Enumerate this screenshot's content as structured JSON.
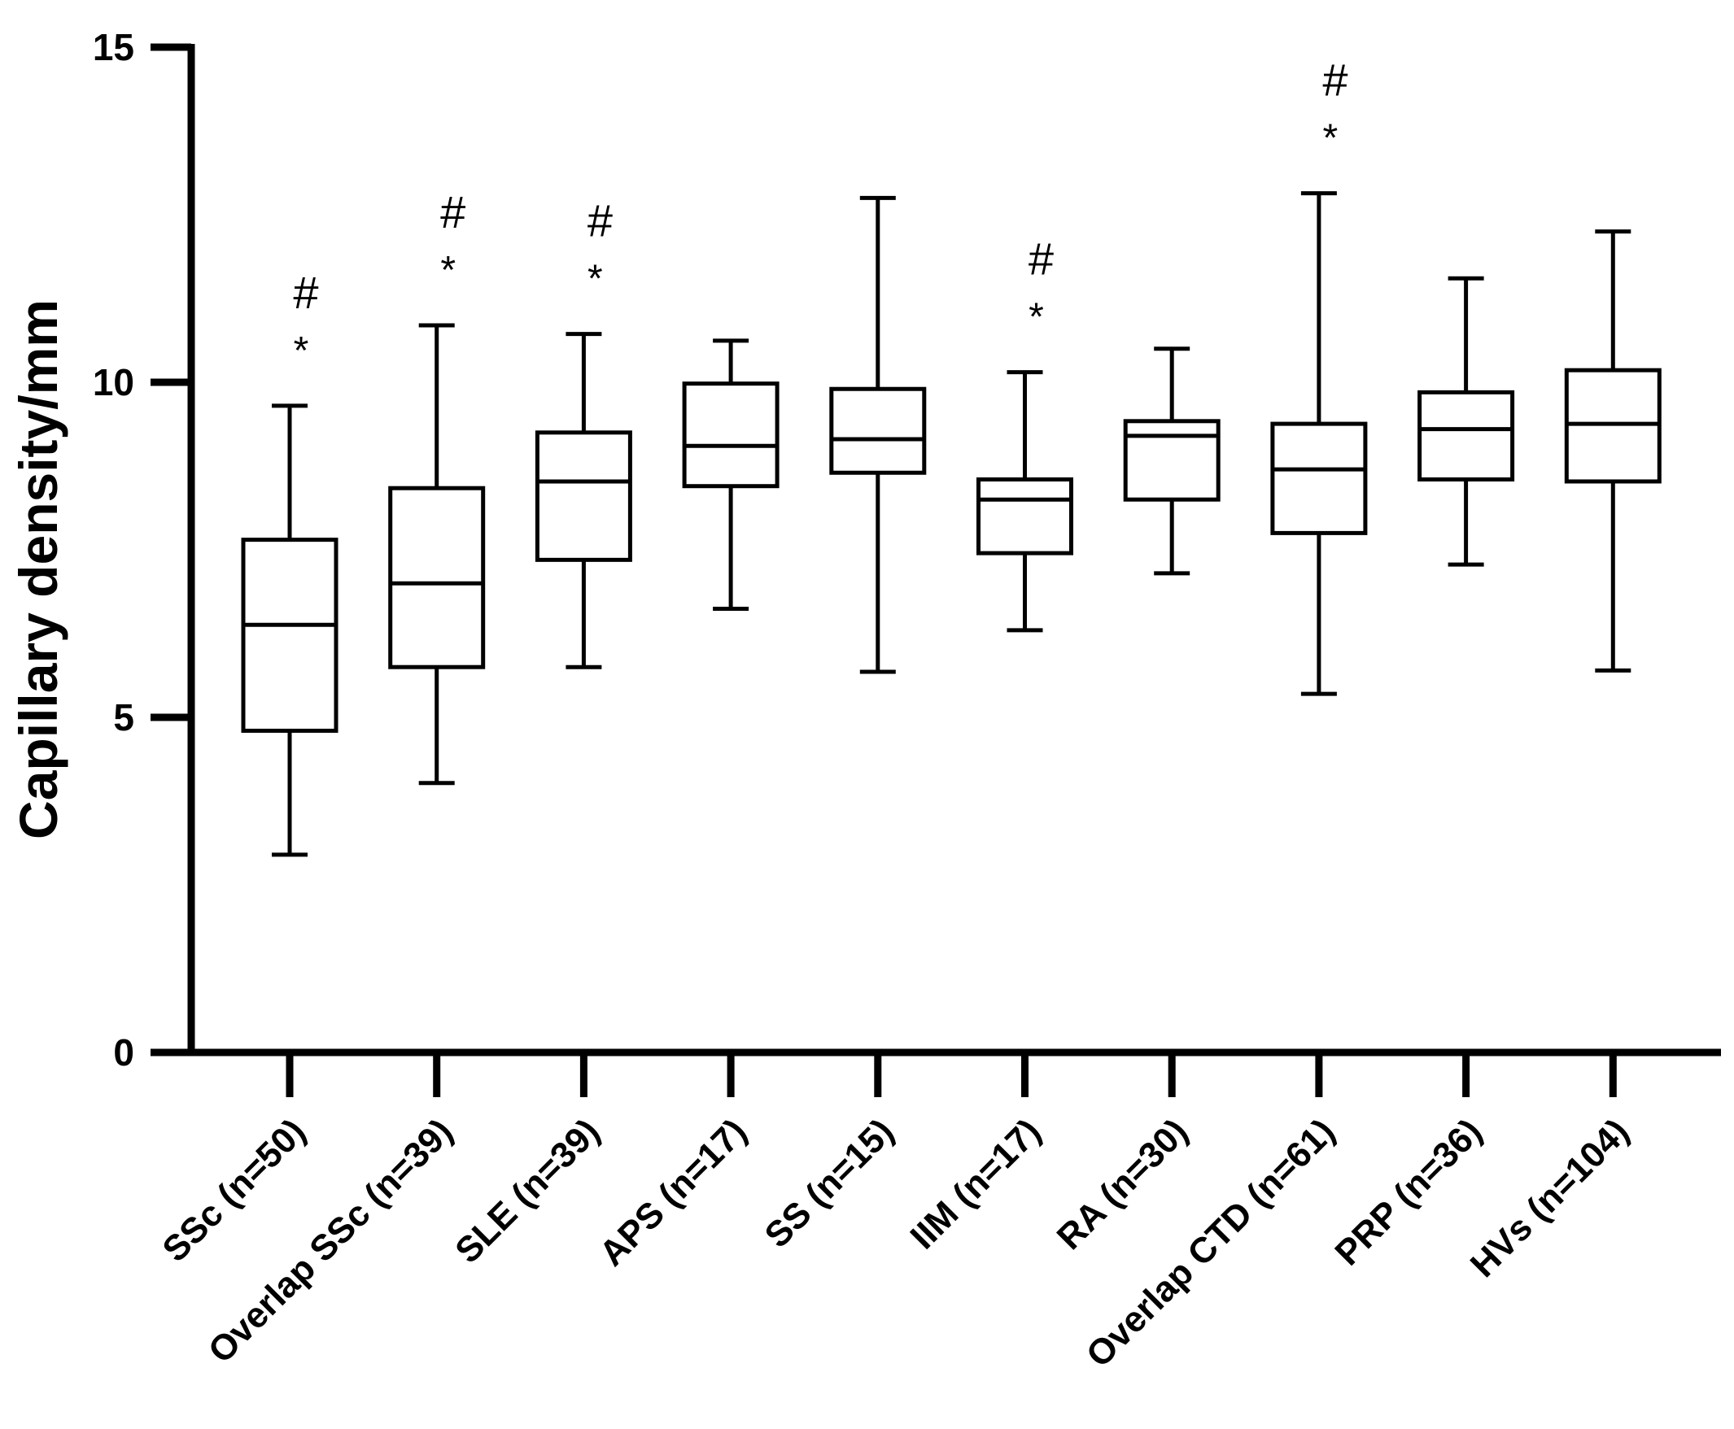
{
  "chart_data": {
    "type": "box",
    "title": "",
    "xlabel": "",
    "ylabel": "Capillary density/mm",
    "ylim": [
      0,
      15
    ],
    "yticks": [
      0,
      5,
      10,
      15
    ],
    "grid": false,
    "categories": [
      "SSc (n=50)",
      "Overlap SSc (n=39)",
      "SLE (n=39)",
      "APS (n=17)",
      "SS (n=15)",
      "IIM (n=17)",
      "RA (n=30)",
      "Overlap CTD (n=61)",
      "PRP (n=36)",
      "HVs (n=104)"
    ],
    "boxes": [
      {
        "min": 2.95,
        "q1": 4.8,
        "median": 6.38,
        "q3": 7.65,
        "max": 9.65
      },
      {
        "min": 4.02,
        "q1": 5.75,
        "median": 7.0,
        "q3": 8.42,
        "max": 10.85
      },
      {
        "min": 5.75,
        "q1": 7.35,
        "median": 8.52,
        "q3": 9.25,
        "max": 10.72
      },
      {
        "min": 6.62,
        "q1": 8.45,
        "median": 9.05,
        "q3": 9.98,
        "max": 10.62
      },
      {
        "min": 5.68,
        "q1": 8.65,
        "median": 9.15,
        "q3": 9.9,
        "max": 12.75
      },
      {
        "min": 6.3,
        "q1": 7.45,
        "median": 8.25,
        "q3": 8.55,
        "max": 10.15
      },
      {
        "min": 7.15,
        "q1": 8.25,
        "median": 9.2,
        "q3": 9.42,
        "max": 10.5
      },
      {
        "min": 5.35,
        "q1": 7.75,
        "median": 8.7,
        "q3": 9.38,
        "max": 12.82
      },
      {
        "min": 7.28,
        "q1": 8.55,
        "median": 9.3,
        "q3": 9.85,
        "max": 11.55
      },
      {
        "min": 5.7,
        "q1": 8.52,
        "median": 9.38,
        "q3": 10.18,
        "max": 12.25
      }
    ],
    "annotations": [
      {
        "category": "SSc (n=50)",
        "marks": [
          "#",
          "*"
        ]
      },
      {
        "category": "Overlap SSc (n=39)",
        "marks": [
          "#",
          "*"
        ]
      },
      {
        "category": "SLE (n=39)",
        "marks": [
          "#",
          "*"
        ]
      },
      {
        "category": "IIM (n=17)",
        "marks": [
          "#",
          "*"
        ]
      },
      {
        "category": "Overlap CTD (n=61)",
        "marks": [
          "#",
          "*"
        ]
      }
    ]
  }
}
